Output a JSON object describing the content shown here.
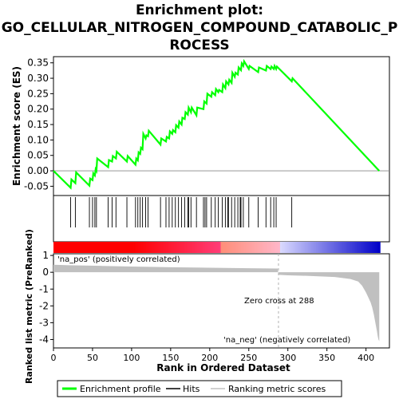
{
  "title_lines": [
    "Enrichment plot:",
    "GO_CELLULAR_NITROGEN_COMPOUND_CATABOLIC_P",
    "ROCESS"
  ],
  "colors": {
    "enrichment_line": "#00ff00",
    "hit_line": "#000000",
    "metric_fill": "#c0c0c0",
    "pos_label": "#ff0000",
    "neg_label": "#0000ff",
    "zero_cross_line": "#b0b0b0"
  },
  "legend": [
    {
      "label": "Enrichment profile",
      "symbol": "green-line"
    },
    {
      "label": "Hits",
      "symbol": "black-line"
    },
    {
      "label": "Ranking metric scores",
      "symbol": "gray-line"
    }
  ],
  "annotations": {
    "pos_label": "'na_pos' (positively correlated)",
    "neg_label": "'na_neg' (negatively correlated)",
    "zero_cross": "Zero cross at 288"
  },
  "chart_data": {
    "type": "line",
    "title": "Enrichment plot: GO_CELLULAR_NITROGEN_COMPOUND_CATABOLIC_PROCESS",
    "xlabel": "Rank in Ordered Dataset",
    "ylabel_top": "Enrichment score (ES)",
    "ylabel_bottom": "Ranked list metric (PreRanked)",
    "xlim": [
      0,
      430
    ],
    "es_ylim": [
      -0.08,
      0.37
    ],
    "metric_ylim": [
      -4.5,
      1.1
    ],
    "x_ticks": [
      0,
      50,
      100,
      150,
      200,
      250,
      300,
      350,
      400
    ],
    "es_ticks": [
      -0.05,
      0.0,
      0.05,
      0.1,
      0.15,
      0.2,
      0.25,
      0.3,
      0.35
    ],
    "es_tick_labels": [
      "-0.05",
      "0.00",
      "0.05",
      "0.10",
      "0.15",
      "0.20",
      "0.25",
      "0.30",
      "0.35"
    ],
    "metric_ticks": [
      1,
      0,
      -1,
      -2,
      -3,
      -4
    ],
    "metric_tick_labels": [
      "1",
      "0",
      "-1",
      "-2",
      "-3",
      "-4"
    ],
    "enrichment_profile": {
      "x": [
        0,
        22,
        23,
        28,
        29,
        46,
        47,
        50,
        51,
        53,
        54,
        55,
        56,
        70,
        71,
        75,
        76,
        80,
        81,
        94,
        95,
        105,
        106,
        108,
        109,
        111,
        112,
        114,
        115,
        118,
        119,
        121,
        122,
        137,
        138,
        144,
        145,
        148,
        149,
        152,
        153,
        156,
        157,
        160,
        161,
        164,
        165,
        168,
        169,
        172,
        173,
        176,
        177,
        183,
        184,
        192,
        193,
        196,
        197,
        202,
        203,
        207,
        208,
        211,
        212,
        216,
        217,
        220,
        221,
        224,
        225,
        228,
        229,
        232,
        233,
        236,
        237,
        240,
        241,
        243,
        244,
        250,
        251,
        262,
        263,
        272,
        273,
        278,
        279,
        282,
        283,
        285,
        286,
        305,
        306,
        417
      ],
      "y": [
        0.0,
        -0.055,
        -0.028,
        -0.04,
        -0.005,
        -0.048,
        -0.025,
        -0.03,
        -0.008,
        -0.015,
        0.005,
        0.0,
        0.04,
        0.012,
        0.035,
        0.03,
        0.048,
        0.04,
        0.062,
        0.03,
        0.048,
        0.02,
        0.04,
        0.034,
        0.06,
        0.055,
        0.075,
        0.07,
        0.12,
        0.105,
        0.115,
        0.112,
        0.13,
        0.085,
        0.105,
        0.095,
        0.11,
        0.105,
        0.128,
        0.12,
        0.132,
        0.125,
        0.148,
        0.14,
        0.16,
        0.15,
        0.172,
        0.168,
        0.19,
        0.182,
        0.205,
        0.19,
        0.205,
        0.18,
        0.205,
        0.2,
        0.225,
        0.218,
        0.25,
        0.24,
        0.255,
        0.245,
        0.265,
        0.255,
        0.262,
        0.255,
        0.28,
        0.268,
        0.29,
        0.28,
        0.295,
        0.285,
        0.318,
        0.305,
        0.318,
        0.312,
        0.335,
        0.326,
        0.348,
        0.34,
        0.355,
        0.33,
        0.34,
        0.32,
        0.335,
        0.325,
        0.34,
        0.33,
        0.338,
        0.33,
        0.34,
        0.33,
        0.338,
        0.29,
        0.3,
        0.0
      ]
    },
    "hits": [
      22,
      28,
      46,
      50,
      53,
      55,
      70,
      75,
      80,
      94,
      105,
      108,
      111,
      114,
      118,
      121,
      137,
      144,
      148,
      152,
      156,
      160,
      164,
      168,
      172,
      173,
      176,
      183,
      192,
      194,
      196,
      202,
      207,
      211,
      216,
      220,
      223,
      224,
      228,
      232,
      236,
      239,
      240,
      243,
      250,
      262,
      272,
      278,
      282,
      285,
      305
    ],
    "zero_cross_rank": 288,
    "ranked_metric": {
      "x": [
        0,
        20,
        60,
        100,
        150,
        200,
        250,
        287,
        288,
        300,
        330,
        360,
        380,
        390,
        395,
        400,
        403,
        406,
        408,
        410,
        412,
        414,
        415,
        416,
        417
      ],
      "y": [
        0.45,
        0.42,
        0.38,
        0.34,
        0.3,
        0.27,
        0.24,
        0.22,
        -0.15,
        -0.18,
        -0.22,
        -0.28,
        -0.4,
        -0.55,
        -0.8,
        -1.2,
        -1.5,
        -1.8,
        -2.1,
        -2.5,
        -3.0,
        -3.5,
        -3.8,
        -4.0,
        -4.1
      ]
    }
  }
}
